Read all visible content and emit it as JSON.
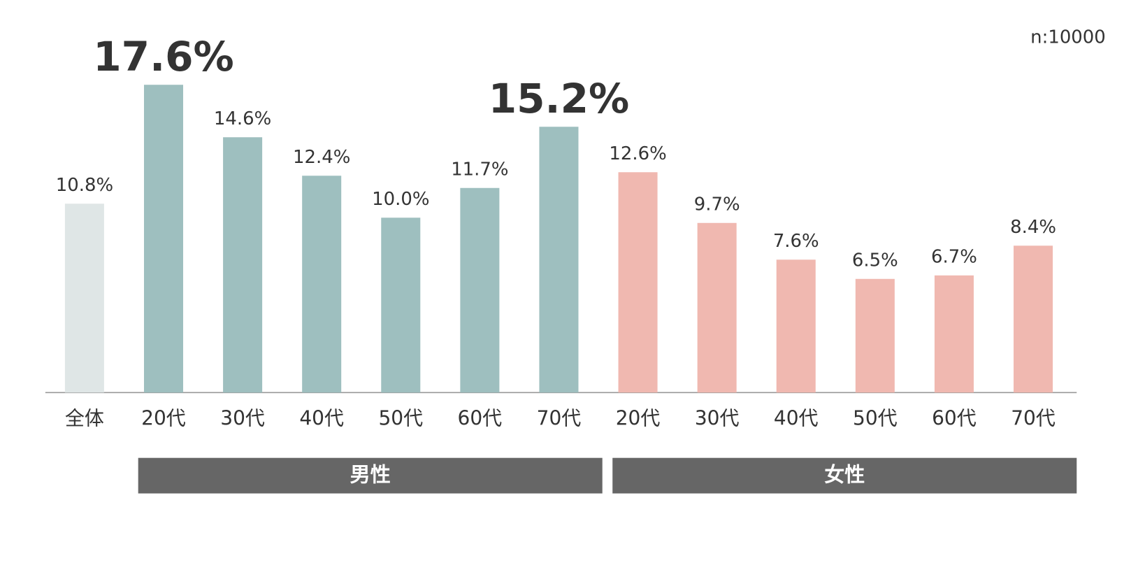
{
  "chart_data": {
    "type": "bar",
    "note": "n:10000",
    "categories": [
      "全体",
      "20代",
      "30代",
      "40代",
      "50代",
      "60代",
      "70代",
      "20代",
      "30代",
      "40代",
      "50代",
      "60代",
      "70代"
    ],
    "values": [
      10.8,
      17.6,
      14.6,
      12.4,
      10.0,
      11.7,
      15.2,
      12.6,
      9.7,
      7.6,
      6.5,
      6.7,
      8.4
    ],
    "value_labels": [
      "10.8%",
      "17.6%",
      "14.6%",
      "12.4%",
      "10.0%",
      "11.7%",
      "15.2%",
      "12.6%",
      "9.7%",
      "7.6%",
      "6.5%",
      "6.7%",
      "8.4%"
    ],
    "colors": [
      "#dfe6e6",
      "#9ebfbf",
      "#9ebfbf",
      "#9ebfbf",
      "#9ebfbf",
      "#9ebfbf",
      "#9ebfbf",
      "#f0b8b0",
      "#f0b8b0",
      "#f0b8b0",
      "#f0b8b0",
      "#f0b8b0",
      "#f0b8b0"
    ],
    "highlight": [
      1,
      6
    ],
    "groups": [
      {
        "name": "男性",
        "first": 1,
        "last": 6
      },
      {
        "name": "女性",
        "first": 7,
        "last": 12
      }
    ],
    "ylim": [
      0,
      20
    ]
  }
}
